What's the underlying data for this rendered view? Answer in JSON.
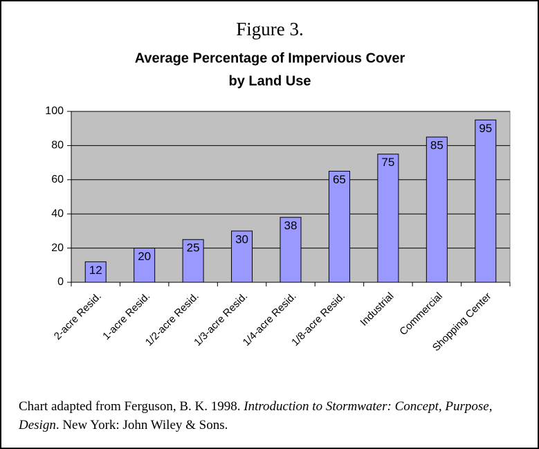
{
  "chart_data": {
    "type": "bar",
    "title": "Figure 3.",
    "subtitle": [
      "Average Percentage of Impervious Cover",
      "by Land Use"
    ],
    "categories": [
      "2-acre Resid.",
      "1-acre Resid.",
      "1/2-acre Resid.",
      "1/3-acre Resid.",
      "1/4-acre Resid.",
      "1/8-acre Resid.",
      "Industrial",
      "Commercial",
      "Shopping Center"
    ],
    "values": [
      12,
      20,
      25,
      30,
      38,
      65,
      75,
      85,
      95
    ],
    "color": "#9999ff",
    "plot_background": "#c0c0c0",
    "ylim": [
      0,
      100
    ],
    "yticks": [
      0,
      20,
      40,
      60,
      80,
      100
    ],
    "grid": true
  },
  "caption": {
    "prefix": "Chart adapted from Ferguson, B. K. 1998. ",
    "italic": "Introduction to Stormwater: Concept, Purpose, Design",
    "suffix": ". New York: John Wiley & Sons."
  }
}
